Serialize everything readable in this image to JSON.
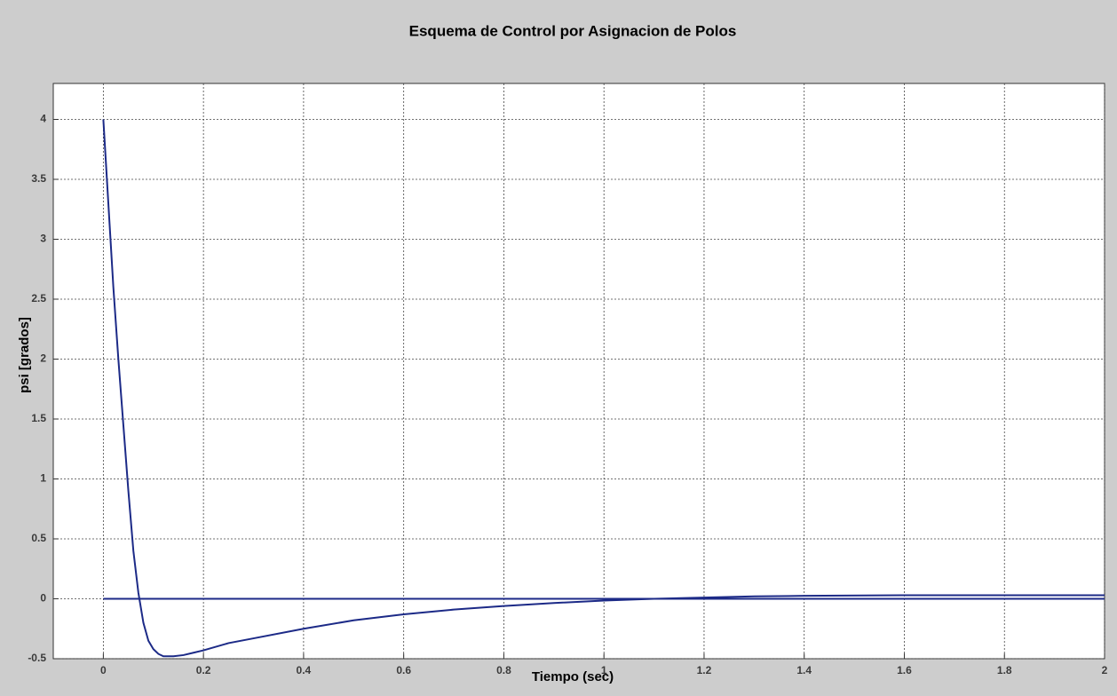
{
  "chart_data": {
    "type": "line",
    "title": "Esquema de Control por Asignacion de Polos",
    "xlabel": "Tiempo (sec)",
    "ylabel": "psi  [grados]",
    "xlim": [
      -0.1,
      2
    ],
    "ylim": [
      -0.5,
      4.3
    ],
    "xticks": [
      0,
      0.2,
      0.4,
      0.6,
      0.8,
      1,
      1.2,
      1.4,
      1.6,
      1.8,
      2
    ],
    "yticks": [
      -0.5,
      0,
      0.5,
      1,
      1.5,
      2,
      2.5,
      3,
      3.5,
      4
    ],
    "grid": true,
    "series": [
      {
        "color": "#1c2a87",
        "x": [
          0,
          0.01,
          0.02,
          0.03,
          0.04,
          0.05,
          0.06,
          0.07,
          0.08,
          0.09,
          0.1,
          0.11,
          0.12,
          0.14,
          0.16,
          0.18,
          0.2,
          0.25,
          0.3,
          0.4,
          0.5,
          0.6,
          0.7,
          0.8,
          0.9,
          1,
          1.1,
          1.2,
          1.3,
          1.4,
          1.6,
          1.8,
          2
        ],
        "values": [
          4,
          3.3,
          2.6,
          2.0,
          1.45,
          0.9,
          0.4,
          0.05,
          -0.2,
          -0.35,
          -0.42,
          -0.46,
          -0.48,
          -0.48,
          -0.47,
          -0.45,
          -0.43,
          -0.37,
          -0.33,
          -0.25,
          -0.18,
          -0.13,
          -0.09,
          -0.06,
          -0.035,
          -0.015,
          0,
          0.01,
          0.02,
          0.025,
          0.03,
          0.03,
          0.03
        ]
      },
      {
        "color": "#1c2a87",
        "x": [
          0,
          2
        ],
        "values": [
          0,
          0
        ]
      }
    ]
  }
}
